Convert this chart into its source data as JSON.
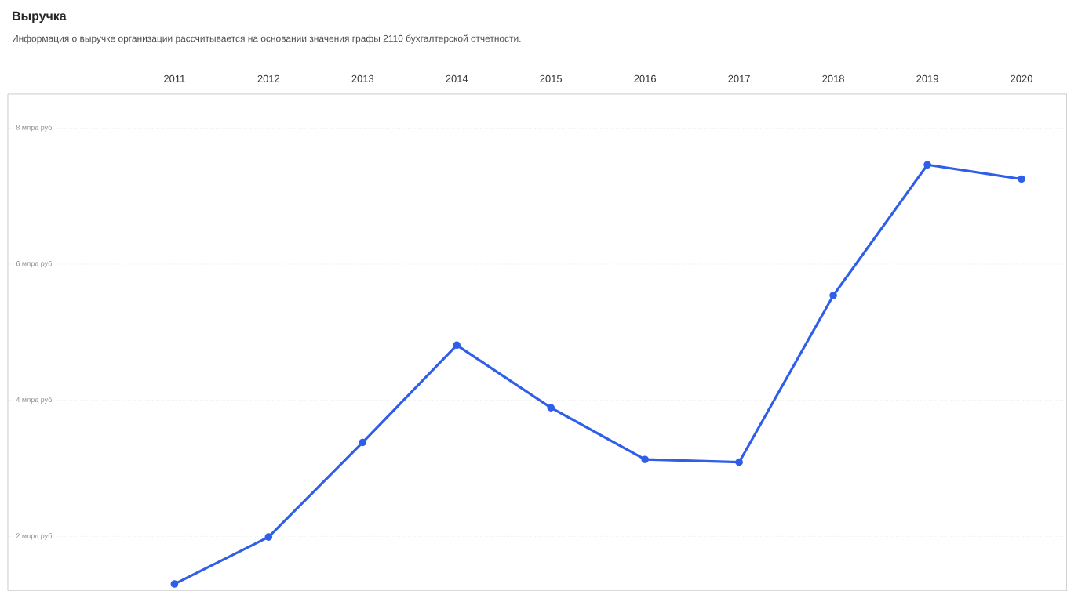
{
  "chart_data": {
    "type": "line",
    "title": "Выручка",
    "subtitle": "Информация о выручке организации рассчитывается на основании значения графы 2110 бухгалтерской отчетности.",
    "categories": [
      "2011",
      "2012",
      "2013",
      "2014",
      "2015",
      "2016",
      "2017",
      "2018",
      "2019",
      "2020"
    ],
    "values": [
      1.3,
      1.99,
      3.38,
      4.81,
      3.89,
      3.13,
      3.09,
      5.54,
      7.46,
      7.25
    ],
    "color": "#2f5ee8",
    "marker": "circle",
    "line_style": "solid",
    "grid": "y",
    "ylim": [
      1.2,
      8.5
    ],
    "yticks": [
      {
        "value": 2,
        "label": "2 млрд руб."
      },
      {
        "value": 4,
        "label": "4 млрд руб."
      },
      {
        "value": 6,
        "label": "6 млрд руб."
      },
      {
        "value": 8,
        "label": "8 млрд руб."
      }
    ]
  }
}
